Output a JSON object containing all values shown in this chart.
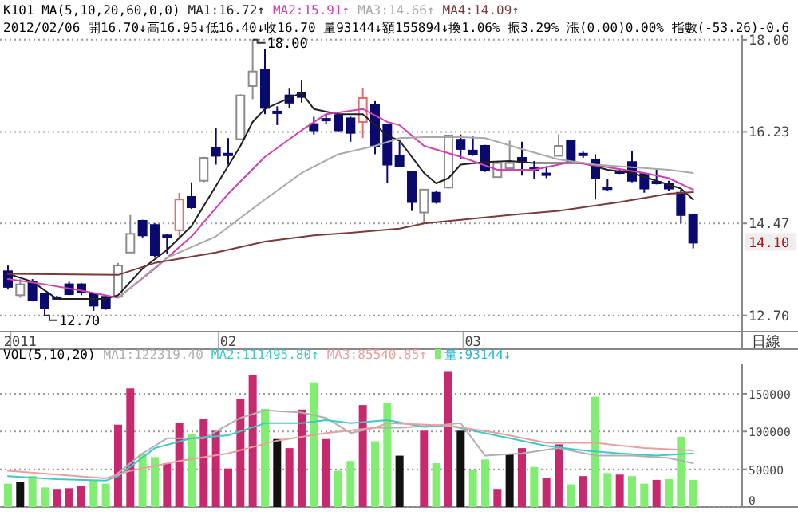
{
  "chart_data": [
    {
      "type": "candlestick",
      "title": "K101 MA(5,10,20,60,0,0)",
      "subtitle": "2012/02/06 開16.70↓高16.95↓低16.40↓收16.70 量93144↓額155894↓換1.06% 振3.29% 漲(0.00)0.00% 指數(-53.26)-0.6",
      "categories": [
        null,
        "2011",
        null,
        null,
        null,
        null,
        null,
        null,
        null,
        null,
        null,
        null,
        null,
        null,
        null,
        null,
        null,
        null,
        "02",
        null,
        null,
        null,
        null,
        null,
        null,
        null,
        null,
        null,
        null,
        null,
        null,
        null,
        null,
        null,
        null,
        null,
        null,
        null,
        "03",
        null,
        null,
        null,
        null,
        null,
        null,
        null,
        null,
        null,
        null,
        null,
        null,
        null,
        null,
        null,
        null,
        null,
        null
      ],
      "ohlc": [
        [
          13.55,
          13.66,
          13.2,
          13.25
        ],
        [
          13.09,
          13.4,
          13.04,
          13.3
        ],
        [
          13.35,
          13.4,
          12.97,
          12.99
        ],
        [
          13.11,
          13.14,
          12.7,
          12.84
        ],
        [
          13.05,
          13.08,
          13.01,
          13.03
        ],
        [
          13.3,
          13.35,
          13.09,
          13.11
        ],
        [
          13.3,
          13.32,
          13.09,
          13.14
        ],
        [
          13.11,
          13.14,
          12.79,
          12.89
        ],
        [
          13.06,
          13.09,
          12.81,
          12.84
        ],
        [
          13.06,
          13.71,
          13.04,
          13.66
        ],
        [
          13.91,
          14.63,
          13.91,
          14.27
        ],
        [
          14.52,
          14.54,
          14.2,
          14.24
        ],
        [
          14.44,
          14.47,
          13.81,
          13.86
        ],
        [
          14.24,
          14.27,
          13.89,
          14.22
        ],
        [
          14.34,
          15.06,
          14.17,
          14.93
        ],
        [
          14.98,
          15.26,
          14.75,
          14.78
        ],
        [
          15.29,
          15.75,
          15.26,
          15.73
        ],
        [
          15.92,
          16.31,
          15.6,
          15.77
        ],
        [
          15.81,
          16.11,
          15.6,
          15.79
        ],
        [
          16.09,
          16.95,
          16.07,
          16.93
        ],
        [
          17.11,
          18.0,
          16.86,
          17.39
        ],
        [
          17.42,
          17.82,
          16.57,
          16.69
        ],
        [
          16.62,
          16.72,
          16.36,
          16.6
        ],
        [
          16.93,
          17.06,
          16.69,
          16.79
        ],
        [
          16.98,
          17.23,
          16.79,
          16.9
        ],
        [
          16.38,
          16.52,
          16.18,
          16.26
        ],
        [
          16.48,
          16.57,
          16.38,
          16.45
        ],
        [
          16.55,
          16.57,
          16.24,
          16.26
        ],
        [
          16.49,
          16.52,
          16.04,
          16.21
        ],
        [
          16.42,
          17.08,
          16.11,
          16.88
        ],
        [
          16.75,
          16.82,
          15.8,
          15.96
        ],
        [
          16.36,
          16.38,
          15.24,
          15.6
        ],
        [
          15.77,
          16.04,
          15.55,
          15.57
        ],
        [
          15.46,
          15.46,
          14.71,
          14.88
        ],
        [
          14.68,
          15.12,
          14.47,
          15.12
        ],
        [
          15.06,
          15.09,
          14.85,
          14.88
        ],
        [
          15.16,
          16.16,
          15.14,
          16.16
        ],
        [
          16.08,
          16.18,
          15.7,
          15.9
        ],
        [
          15.87,
          16.14,
          15.77,
          15.8
        ],
        [
          15.96,
          15.98,
          15.46,
          15.5
        ],
        [
          15.36,
          15.67,
          15.36,
          15.63
        ],
        [
          15.53,
          16.06,
          15.53,
          15.63
        ],
        [
          15.73,
          16.04,
          15.39,
          15.67
        ],
        [
          15.53,
          15.67,
          15.32,
          15.52
        ],
        [
          15.43,
          15.57,
          15.34,
          15.42
        ],
        [
          15.77,
          16.18,
          15.77,
          15.96
        ],
        [
          16.06,
          16.08,
          15.65,
          15.67
        ],
        [
          15.81,
          15.85,
          15.73,
          15.8
        ],
        [
          15.7,
          15.8,
          14.93,
          15.34
        ],
        [
          15.16,
          15.32,
          15.09,
          15.15
        ],
        [
          15.47,
          15.5,
          15.42,
          15.46
        ],
        [
          15.65,
          15.87,
          15.26,
          15.29
        ],
        [
          15.42,
          15.44,
          15.06,
          15.14
        ],
        [
          15.27,
          15.5,
          15.22,
          15.26
        ],
        [
          15.24,
          15.29,
          15.09,
          15.14
        ],
        [
          15.06,
          15.12,
          14.47,
          14.63
        ],
        [
          14.63,
          14.63,
          13.99,
          14.1
        ]
      ],
      "colors": [
        "#0a0a6e",
        "#8c8c8c",
        "#0a0a6e",
        "#0a0a6e",
        "#0a0a6e",
        "#0a0a6e",
        "#0a0a6e",
        "#0a0a6e",
        "#0a0a6e",
        "#8c8c8c",
        "#8c8c8c",
        "#0a0a6e",
        "#0a0a6e",
        "#0a0a6e",
        "#e07070",
        "#0a0a6e",
        "#8c8c8c",
        "#0a0a6e",
        "#0a0a6e",
        "#8c8c8c",
        "#8c8c8c",
        "#0a0a6e",
        "#0a0a6e",
        "#0a0a6e",
        "#0a0a6e",
        "#0a0a6e",
        "#0a0a6e",
        "#0a0a6e",
        "#0a0a6e",
        "#e07070",
        "#0a0a6e",
        "#0a0a6e",
        "#0a0a6e",
        "#0a0a6e",
        "#8c8c8c",
        "#0a0a6e",
        "#8c8c8c",
        "#0a0a6e",
        "#0a0a6e",
        "#0a0a6e",
        "#8c8c8c",
        "#8c8c8c",
        "#0a0a6e",
        "#0a0a6e",
        "#0a0a6e",
        "#8c8c8c",
        "#0a0a6e",
        "#0a0a6e",
        "#0a0a6e",
        "#0a0a6e",
        "#0a0a6e",
        "#0a0a6e",
        "#0a0a6e",
        "#0a0a6e",
        "#0a0a6e",
        "#0a0a6e",
        "#0a0a6e"
      ],
      "series": [
        {
          "type": "line",
          "name": "MA1:16.72↑",
          "color": "#202020",
          "values": [
            13.5,
            null,
            13.35,
            null,
            13.02,
            null,
            13.02,
            null,
            13.02,
            13.09,
            null,
            13.6,
            null,
            13.96,
            null,
            14.42,
            null,
            15.19,
            null,
            15.96,
            16.42,
            16.67,
            null,
            16.88,
            16.98,
            16.67,
            null,
            16.57,
            null,
            16.57,
            null,
            16.16,
            16.06,
            null,
            15.44,
            15.24,
            15.34,
            15.6,
            null,
            15.65,
            null,
            15.67,
            null,
            15.63,
            null,
            15.63,
            null,
            15.63,
            null,
            15.5,
            null,
            15.44,
            null,
            15.29,
            null,
            15.14,
            14.93
          ]
        },
        {
          "type": "line",
          "name": "MA2:15.91↑",
          "color": "#d040b0",
          "values": [
            13.4,
            null,
            null,
            13.3,
            null,
            null,
            13.18,
            null,
            null,
            13.04,
            null,
            null,
            13.6,
            null,
            null,
            14.22,
            null,
            null,
            15.04,
            null,
            null,
            15.75,
            null,
            null,
            16.26,
            null,
            16.57,
            null,
            null,
            16.67,
            null,
            16.42,
            16.36,
            null,
            15.96,
            null,
            null,
            15.75,
            null,
            null,
            15.5,
            null,
            null,
            15.5,
            null,
            null,
            15.65,
            null,
            null,
            15.55,
            null,
            null,
            15.44,
            null,
            15.34,
            null,
            15.12
          ]
        },
        {
          "type": "line",
          "name": "MA3:14.66↑",
          "color": "#a8a8a8",
          "values": [
            null,
            null,
            null,
            null,
            null,
            null,
            null,
            null,
            null,
            13.04,
            null,
            null,
            null,
            13.81,
            null,
            null,
            null,
            14.22,
            null,
            null,
            null,
            14.93,
            null,
            null,
            15.44,
            null,
            null,
            15.8,
            null,
            null,
            15.96,
            null,
            16.11,
            null,
            16.13,
            null,
            null,
            16.13,
            null,
            16.11,
            null,
            null,
            15.9,
            null,
            null,
            15.7,
            null,
            null,
            15.6,
            null,
            null,
            15.55,
            null,
            null,
            15.5,
            null,
            15.44
          ]
        },
        {
          "type": "line",
          "name": "MA4:14.09↑",
          "color": "#7a3a3a",
          "values": [
            13.5,
            null,
            null,
            null,
            null,
            null,
            null,
            null,
            null,
            13.48,
            null,
            null,
            13.71,
            null,
            null,
            null,
            null,
            13.91,
            null,
            null,
            null,
            14.12,
            null,
            null,
            null,
            14.24,
            null,
            null,
            14.29,
            null,
            null,
            null,
            14.37,
            null,
            14.47,
            null,
            null,
            null,
            null,
            null,
            null,
            14.63,
            null,
            null,
            null,
            14.71,
            null,
            null,
            null,
            null,
            14.88,
            null,
            null,
            null,
            15.04,
            null,
            15.07
          ]
        }
      ],
      "ylim": [
        12.39,
        18.09
      ],
      "yticks": [
        {
          "value": 12.7,
          "label": "12.70"
        },
        14.47,
        16.23,
        {
          "value": 18,
          "label": "18.00"
        }
      ],
      "grid": "y",
      "annotations": [
        "18.00",
        "12.70",
        "14.10",
        "日線"
      ]
    },
    {
      "type": "bar",
      "title": "VOL(5,10,20)",
      "categories": [
        null,
        null,
        null,
        null,
        null,
        null,
        null,
        null,
        null,
        null,
        null,
        null,
        null,
        null,
        null,
        null,
        null,
        null,
        null,
        null,
        null,
        null,
        null,
        null,
        null,
        null,
        null,
        null,
        null,
        null,
        null,
        null,
        null,
        null,
        null,
        null,
        null,
        null,
        null,
        null,
        null,
        null,
        null,
        null,
        null,
        null,
        null,
        null,
        null,
        null,
        null,
        null,
        null,
        null,
        null,
        null,
        null
      ],
      "series": [
        {
          "name": "MA1:122319.40",
          "type": "line",
          "color": "#b0b0b0",
          "values": [
            null,
            null,
            null,
            null,
            null,
            null,
            null,
            null,
            null,
            45000,
            null,
            71000,
            null,
            91000,
            null,
            null,
            91000,
            null,
            null,
            118000,
            null,
            128000,
            null,
            null,
            125000,
            null,
            118000,
            null,
            98000,
            null,
            105000,
            null,
            105000,
            null,
            null,
            108000,
            null,
            111000,
            null,
            68000,
            null,
            null,
            71000,
            null,
            null,
            78000,
            null,
            null,
            68000,
            null,
            null,
            68000,
            null,
            null,
            65000,
            null,
            58000
          ]
        },
        {
          "name": "MA2:111495.80↑",
          "type": "line",
          "color": "#40c8c8",
          "values": [
            41000,
            null,
            null,
            null,
            37000,
            null,
            null,
            null,
            35000,
            41000,
            null,
            null,
            78000,
            null,
            null,
            91000,
            null,
            null,
            95000,
            null,
            null,
            111000,
            null,
            null,
            111000,
            null,
            115000,
            null,
            111000,
            null,
            null,
            115000,
            null,
            null,
            106000,
            null,
            108000,
            null,
            101000,
            null,
            null,
            91000,
            null,
            null,
            81000,
            null,
            null,
            75000,
            null,
            null,
            71000,
            null,
            null,
            68000,
            null,
            null,
            71000
          ]
        },
        {
          "name": "MA3:85540.85↑",
          "type": "line",
          "color": "#e8a0a0",
          "values": [
            48000,
            null,
            null,
            null,
            null,
            null,
            null,
            null,
            38000,
            null,
            48000,
            null,
            null,
            null,
            61000,
            null,
            null,
            null,
            71000,
            null,
            null,
            null,
            88000,
            null,
            null,
            null,
            98000,
            null,
            null,
            null,
            105000,
            111000,
            null,
            null,
            null,
            null,
            108000,
            null,
            null,
            null,
            98000,
            null,
            null,
            null,
            85000,
            null,
            null,
            null,
            85000,
            null,
            null,
            null,
            78000,
            null,
            null,
            null,
            75000
          ]
        },
        {
          "name": "量:93144↓",
          "color": "#30b8d0",
          "colors": [
            "#80ee70",
            "#111111",
            "#80ee70",
            "#80ee70",
            "#c8286e",
            "#c8286e",
            "#c8286e",
            "#80ee70",
            "#80ee70",
            "#c8286e",
            "#c8286e",
            "#80ee70",
            "#80ee70",
            "#c8286e",
            "#c8286e",
            "#80ee70",
            "#c8286e",
            "#c8286e",
            "#c8286e",
            "#c8286e",
            "#c8286e",
            "#80ee70",
            "#111111",
            "#c8286e",
            "#c8286e",
            "#80ee70",
            "#c8286e",
            "#80ee70",
            "#80ee70",
            "#c8286e",
            "#80ee70",
            "#80ee70",
            "#111111",
            null,
            "#c8286e",
            "#80ee70",
            "#c8286e",
            "#111111",
            "#80ee70",
            "#80ee70",
            "#c8286e",
            "#111111",
            "#c8286e",
            "#80ee70",
            "#c8286e",
            "#c8286e",
            "#80ee70",
            "#c8286e",
            "#80ee70",
            "#80ee70",
            "#c8286e",
            "#80ee70",
            "#80ee70",
            "#c8286e",
            "#80ee70",
            "#80ee70",
            "#80ee70"
          ],
          "values": [
            31000,
            33000,
            41000,
            26000,
            23000,
            25000,
            28000,
            35000,
            31000,
            109000,
            157000,
            71000,
            66000,
            58000,
            111000,
            97000,
            117000,
            101000,
            51000,
            143000,
            175000,
            130000,
            90000,
            78000,
            129000,
            165000,
            90000,
            48000,
            61000,
            135000,
            87000,
            138000,
            68000,
            null,
            101000,
            58000,
            180000,
            101000,
            49000,
            63000,
            23000,
            70000,
            78000,
            53000,
            38000,
            83000,
            30000,
            41000,
            146000,
            45000,
            43000,
            41000,
            31000,
            36000,
            37000,
            93000,
            36000
          ]
        }
      ],
      "ylim": [
        0,
        190000
      ],
      "yticks": [
        0,
        50000,
        100000,
        150000
      ],
      "grid": "y",
      "tick_labels": "y"
    }
  ]
}
